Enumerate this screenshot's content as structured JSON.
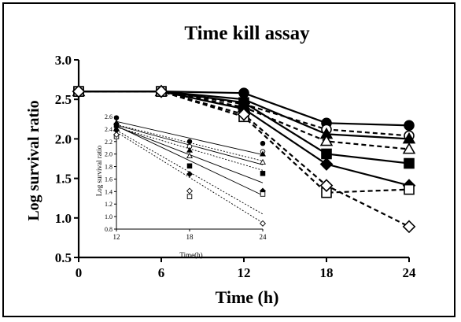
{
  "chart_data": [
    {
      "type": "line",
      "title": "Time kill assay",
      "xlabel": "Time (h)",
      "ylabel": "Log survival ratio",
      "x": [
        0,
        6,
        12,
        18,
        24
      ],
      "xticks": [
        "0",
        "6",
        "12",
        "18",
        "24"
      ],
      "yticks": [
        "0.5",
        "1.0",
        "1.5",
        "2.0",
        "2.5",
        "3.0"
      ],
      "xlim": [
        0,
        24
      ],
      "ylim": [
        0.5,
        3.0
      ],
      "grid": false,
      "legend": "none",
      "series": [
        {
          "marker": "filled-circle",
          "line": "solid",
          "values": [
            2.6,
            2.6,
            2.58,
            2.2,
            2.17
          ]
        },
        {
          "marker": "open-circle",
          "line": "dashed",
          "values": [
            2.6,
            2.6,
            2.44,
            2.12,
            2.04
          ]
        },
        {
          "marker": "filled-triangle",
          "line": "solid",
          "values": [
            2.6,
            2.6,
            2.5,
            2.06,
            2.0
          ]
        },
        {
          "marker": "open-triangle",
          "line": "dashed",
          "values": [
            2.6,
            2.6,
            2.4,
            1.97,
            1.87
          ]
        },
        {
          "marker": "filled-square",
          "line": "solid",
          "values": [
            2.6,
            2.6,
            2.46,
            1.81,
            1.69
          ]
        },
        {
          "marker": "filled-diamond",
          "line": "solid",
          "values": [
            2.6,
            2.6,
            2.38,
            1.68,
            1.41
          ]
        },
        {
          "marker": "open-square",
          "line": "dashed",
          "values": [
            2.6,
            2.6,
            2.28,
            1.32,
            1.36
          ]
        },
        {
          "marker": "open-diamond",
          "line": "dashed",
          "values": [
            2.6,
            2.6,
            2.31,
            1.41,
            0.89
          ]
        }
      ]
    },
    {
      "type": "scatter",
      "xlabel": "Time(h)",
      "ylabel": "Log survival ratio",
      "x": [
        12,
        18,
        24
      ],
      "xticks": [
        "12",
        "18",
        "24"
      ],
      "yticks": [
        "0.8",
        "1.0",
        "1.2",
        "1.4",
        "1.6",
        "1.8",
        "2.0",
        "2.2",
        "2.4",
        "2.6"
      ],
      "xlim": [
        12,
        24
      ],
      "ylim": [
        0.8,
        2.6
      ],
      "grid": false,
      "series": [
        {
          "marker": "filled-circle",
          "line": "solid",
          "values": [
            2.58,
            2.2,
            2.17
          ],
          "fit": [
            2.52,
            1.99
          ]
        },
        {
          "marker": "open-circle",
          "line": "dotted",
          "values": [
            2.44,
            2.12,
            2.04
          ],
          "fit": [
            2.47,
            1.89
          ]
        },
        {
          "marker": "filled-triangle",
          "line": "solid",
          "values": [
            2.5,
            2.06,
            2.0
          ],
          "fit": [
            2.46,
            1.83
          ]
        },
        {
          "marker": "open-triangle",
          "line": "dotted",
          "values": [
            2.4,
            1.97,
            1.87
          ],
          "fit": [
            2.43,
            1.74
          ]
        },
        {
          "marker": "filled-square",
          "line": "solid",
          "values": [
            2.46,
            1.81,
            1.69
          ],
          "fit": [
            2.44,
            1.54
          ]
        },
        {
          "marker": "filled-diamond",
          "line": "solid",
          "values": [
            2.38,
            1.68,
            1.41
          ],
          "fit": [
            2.45,
            1.34
          ]
        },
        {
          "marker": "open-square",
          "line": "dotted",
          "values": [
            2.28,
            1.32,
            1.36
          ],
          "fit": [
            2.38,
            1.04
          ]
        },
        {
          "marker": "open-diamond",
          "line": "dotted",
          "values": [
            2.31,
            1.41,
            0.89
          ],
          "fit": [
            2.35,
            0.9
          ]
        }
      ]
    }
  ]
}
